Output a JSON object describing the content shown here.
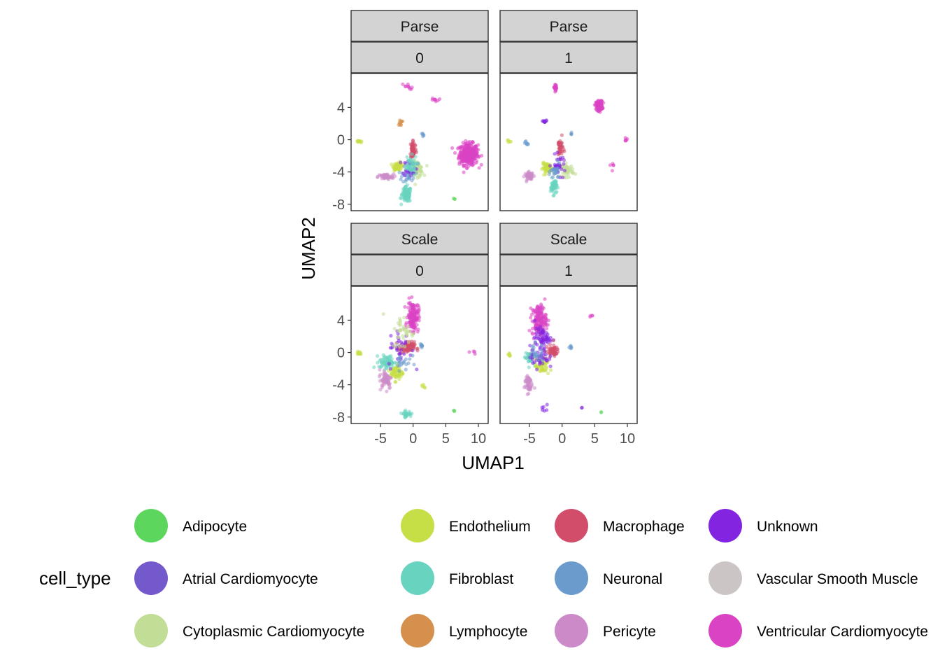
{
  "chart_data": {
    "type": "scatter",
    "xlabel": "UMAP1",
    "ylabel": "UMAP2",
    "xlim": [
      -9.5,
      11.5
    ],
    "ylim": [
      -8.8,
      8.2
    ],
    "xticks": [
      -5,
      0,
      5,
      10
    ],
    "yticks": [
      -8,
      -4,
      0,
      4
    ],
    "xtick_labels": [
      "-5",
      "0",
      "5",
      "10"
    ],
    "ytick_labels": [
      "-8",
      "-4",
      "0",
      "4"
    ],
    "legend": {
      "title": "cell_type",
      "position": "bottom",
      "items": [
        {
          "name": "Adipocyte",
          "color": "#5cd65c"
        },
        {
          "name": "Atrial Cardiomyocyte",
          "color": "#7359cc"
        },
        {
          "name": "Cytoplasmic Cardiomyocyte",
          "color": "#c2dd96"
        },
        {
          "name": "Endothelium",
          "color": "#c6df46"
        },
        {
          "name": "Fibroblast",
          "color": "#68d4c0"
        },
        {
          "name": "Lymphocyte",
          "color": "#d6904e"
        },
        {
          "name": "Macrophage",
          "color": "#d14d6a"
        },
        {
          "name": "Neuronal",
          "color": "#6b9bcd"
        },
        {
          "name": "Pericyte",
          "color": "#cc8ac9"
        },
        {
          "name": "Unknown",
          "color": "#8224e0"
        },
        {
          "name": "Vascular Smooth Muscle",
          "color": "#cbc6c5"
        },
        {
          "name": "Ventricular Cardiomyocyte",
          "color": "#da44c4"
        }
      ]
    },
    "panels": [
      {
        "strip_top": "Parse",
        "strip_bottom": "0",
        "clusters": [
          {
            "type": "Ventricular Cardiomyocyte",
            "x": 8.5,
            "y": -1.8,
            "sx": 1.2,
            "sy": 1.1,
            "n": 340
          },
          {
            "type": "Fibroblast",
            "x": -1.0,
            "y": -6.8,
            "sx": 0.6,
            "sy": 0.8,
            "n": 110
          },
          {
            "type": "Endothelium",
            "x": -2.3,
            "y": -3.3,
            "sx": 0.6,
            "sy": 0.4,
            "n": 60
          },
          {
            "type": "Cytoplasmic Cardiomyocyte",
            "x": 0.6,
            "y": -3.6,
            "sx": 0.8,
            "sy": 0.8,
            "n": 55
          },
          {
            "type": "Pericyte",
            "x": -4.2,
            "y": -4.6,
            "sx": 1.0,
            "sy": 0.3,
            "n": 55
          },
          {
            "type": "Macrophage",
            "x": 0.0,
            "y": -1.2,
            "sx": 0.4,
            "sy": 1.0,
            "n": 55
          },
          {
            "type": "Neuronal",
            "x": -0.7,
            "y": -4.2,
            "sx": 0.8,
            "sy": 1.0,
            "n": 35
          },
          {
            "type": "Unknown",
            "x": -0.5,
            "y": -3.4,
            "sx": 0.9,
            "sy": 0.9,
            "n": 25
          },
          {
            "type": "Fibroblast",
            "x": -0.5,
            "y": -3.2,
            "sx": 0.9,
            "sy": 1.0,
            "n": 40
          },
          {
            "type": "Ventricular Cardiomyocyte",
            "x": -1.0,
            "y": 6.6,
            "sx": 0.8,
            "sy": 0.3,
            "n": 10
          },
          {
            "type": "Ventricular Cardiomyocyte",
            "x": 3.5,
            "y": 4.9,
            "sx": 0.5,
            "sy": 0.2,
            "n": 8
          },
          {
            "type": "Lymphocyte",
            "x": -2.0,
            "y": 2.1,
            "sx": 0.3,
            "sy": 0.3,
            "n": 12
          },
          {
            "type": "Endothelium",
            "x": -8.2,
            "y": -0.2,
            "sx": 0.3,
            "sy": 0.2,
            "n": 10
          },
          {
            "type": "Neuronal",
            "x": 1.4,
            "y": 0.6,
            "sx": 0.2,
            "sy": 0.2,
            "n": 6
          },
          {
            "type": "Adipocyte",
            "x": 6.3,
            "y": -7.3,
            "sx": 0.1,
            "sy": 0.1,
            "n": 3
          }
        ]
      },
      {
        "strip_top": "Parse",
        "strip_bottom": "1",
        "clusters": [
          {
            "type": "Ventricular Cardiomyocyte",
            "x": 5.7,
            "y": 4.2,
            "sx": 0.4,
            "sy": 0.5,
            "n": 160
          },
          {
            "type": "Ventricular Cardiomyocyte",
            "x": -1.0,
            "y": 6.5,
            "sx": 0.25,
            "sy": 0.3,
            "n": 25
          },
          {
            "type": "Endothelium",
            "x": -2.3,
            "y": -3.5,
            "sx": 0.6,
            "sy": 0.5,
            "n": 55
          },
          {
            "type": "Cytoplasmic Cardiomyocyte",
            "x": 0.8,
            "y": -3.8,
            "sx": 0.8,
            "sy": 0.7,
            "n": 45
          },
          {
            "type": "Pericyte",
            "x": -5.0,
            "y": -4.5,
            "sx": 0.6,
            "sy": 0.4,
            "n": 45
          },
          {
            "type": "Fibroblast",
            "x": -1.3,
            "y": -5.8,
            "sx": 0.4,
            "sy": 0.8,
            "n": 50
          },
          {
            "type": "Macrophage",
            "x": -0.3,
            "y": -1.0,
            "sx": 0.4,
            "sy": 1.0,
            "n": 40
          },
          {
            "type": "Unknown",
            "x": -0.5,
            "y": -3.2,
            "sx": 0.9,
            "sy": 1.0,
            "n": 30
          },
          {
            "type": "Neuronal",
            "x": -1.0,
            "y": -4.0,
            "sx": 0.6,
            "sy": 0.8,
            "n": 25
          },
          {
            "type": "Unknown",
            "x": -2.8,
            "y": 2.2,
            "sx": 0.4,
            "sy": 0.2,
            "n": 10
          },
          {
            "type": "Ventricular Cardiomyocyte",
            "x": 9.8,
            "y": 0.0,
            "sx": 0.3,
            "sy": 0.3,
            "n": 6
          },
          {
            "type": "Ventricular Cardiomyocyte",
            "x": 7.8,
            "y": -3.2,
            "sx": 0.5,
            "sy": 0.5,
            "n": 5
          },
          {
            "type": "Endothelium",
            "x": -8.2,
            "y": -0.2,
            "sx": 0.2,
            "sy": 0.2,
            "n": 5
          },
          {
            "type": "Neuronal",
            "x": -5.5,
            "y": -0.4,
            "sx": 0.3,
            "sy": 0.4,
            "n": 8
          },
          {
            "type": "Neuronal",
            "x": 1.4,
            "y": 0.6,
            "sx": 0.2,
            "sy": 0.2,
            "n": 4
          }
        ]
      },
      {
        "strip_top": "Scale",
        "strip_bottom": "0",
        "clusters": [
          {
            "type": "Ventricular Cardiomyocyte",
            "x": 0.0,
            "y": 4.5,
            "sx": 0.7,
            "sy": 1.5,
            "n": 150
          },
          {
            "type": "Macrophage",
            "x": -1.0,
            "y": 0.6,
            "sx": 1.0,
            "sy": 0.6,
            "n": 90
          },
          {
            "type": "Fibroblast",
            "x": -4.0,
            "y": -1.2,
            "sx": 1.0,
            "sy": 0.7,
            "n": 70
          },
          {
            "type": "Endothelium",
            "x": -2.5,
            "y": -2.5,
            "sx": 0.8,
            "sy": 0.8,
            "n": 60
          },
          {
            "type": "Pericyte",
            "x": -4.2,
            "y": -3.3,
            "sx": 0.8,
            "sy": 1.0,
            "n": 60
          },
          {
            "type": "Unknown",
            "x": -2.0,
            "y": 0.5,
            "sx": 1.5,
            "sy": 2.0,
            "n": 35
          },
          {
            "type": "Cytoplasmic Cardiomyocyte",
            "x": -1.5,
            "y": 2.5,
            "sx": 1.5,
            "sy": 1.8,
            "n": 40
          },
          {
            "type": "Neuronal",
            "x": -1.5,
            "y": -1.0,
            "sx": 1.0,
            "sy": 1.0,
            "n": 20
          },
          {
            "type": "Fibroblast",
            "x": -1.0,
            "y": -7.6,
            "sx": 0.6,
            "sy": 0.3,
            "n": 30
          },
          {
            "type": "Endothelium",
            "x": -8.3,
            "y": -0.1,
            "sx": 0.3,
            "sy": 0.2,
            "n": 10
          },
          {
            "type": "Neuronal",
            "x": 1.3,
            "y": 0.8,
            "sx": 0.2,
            "sy": 0.2,
            "n": 8
          },
          {
            "type": "Ventricular Cardiomyocyte",
            "x": 9.0,
            "y": 0.0,
            "sx": 0.5,
            "sy": 0.3,
            "n": 4
          },
          {
            "type": "Adipocyte",
            "x": 6.3,
            "y": -7.2,
            "sx": 0.1,
            "sy": 0.1,
            "n": 3
          },
          {
            "type": "Endothelium",
            "x": 1.5,
            "y": -4.2,
            "sx": 0.4,
            "sy": 0.5,
            "n": 5
          }
        ]
      },
      {
        "strip_top": "Scale",
        "strip_bottom": "1",
        "clusters": [
          {
            "type": "Ventricular Cardiomyocyte",
            "x": -3.5,
            "y": 4.0,
            "sx": 0.9,
            "sy": 1.6,
            "n": 170
          },
          {
            "type": "Unknown",
            "x": -3.0,
            "y": 1.8,
            "sx": 1.0,
            "sy": 1.0,
            "n": 60
          },
          {
            "type": "Fibroblast",
            "x": -5.0,
            "y": -0.6,
            "sx": 0.6,
            "sy": 0.7,
            "n": 45
          },
          {
            "type": "Pericyte",
            "x": -5.2,
            "y": -3.8,
            "sx": 0.5,
            "sy": 1.0,
            "n": 50
          },
          {
            "type": "Macrophage",
            "x": -1.5,
            "y": 0.2,
            "sx": 0.8,
            "sy": 0.6,
            "n": 50
          },
          {
            "type": "Endothelium",
            "x": -3.0,
            "y": -1.8,
            "sx": 0.9,
            "sy": 0.8,
            "n": 45
          },
          {
            "type": "Unknown",
            "x": -3.5,
            "y": -0.5,
            "sx": 1.2,
            "sy": 1.2,
            "n": 40
          },
          {
            "type": "Neuronal",
            "x": -4.0,
            "y": 0.0,
            "sx": 1.0,
            "sy": 1.0,
            "n": 20
          },
          {
            "type": "Neuronal",
            "x": 1.3,
            "y": 0.6,
            "sx": 0.2,
            "sy": 0.2,
            "n": 6
          },
          {
            "type": "Endothelium",
            "x": -8.0,
            "y": -0.2,
            "sx": 0.2,
            "sy": 0.2,
            "n": 6
          },
          {
            "type": "Ventricular Cardiomyocyte",
            "x": 4.5,
            "y": 4.5,
            "sx": 0.3,
            "sy": 0.3,
            "n": 4
          },
          {
            "type": "Unknown",
            "x": -2.5,
            "y": -7.0,
            "sx": 0.5,
            "sy": 0.4,
            "n": 6
          },
          {
            "type": "Adipocyte",
            "x": 6.0,
            "y": -7.3,
            "sx": 0.1,
            "sy": 0.1,
            "n": 2
          },
          {
            "type": "Unknown",
            "x": 3.0,
            "y": -6.8,
            "sx": 0.1,
            "sy": 0.1,
            "n": 2
          }
        ]
      }
    ]
  }
}
